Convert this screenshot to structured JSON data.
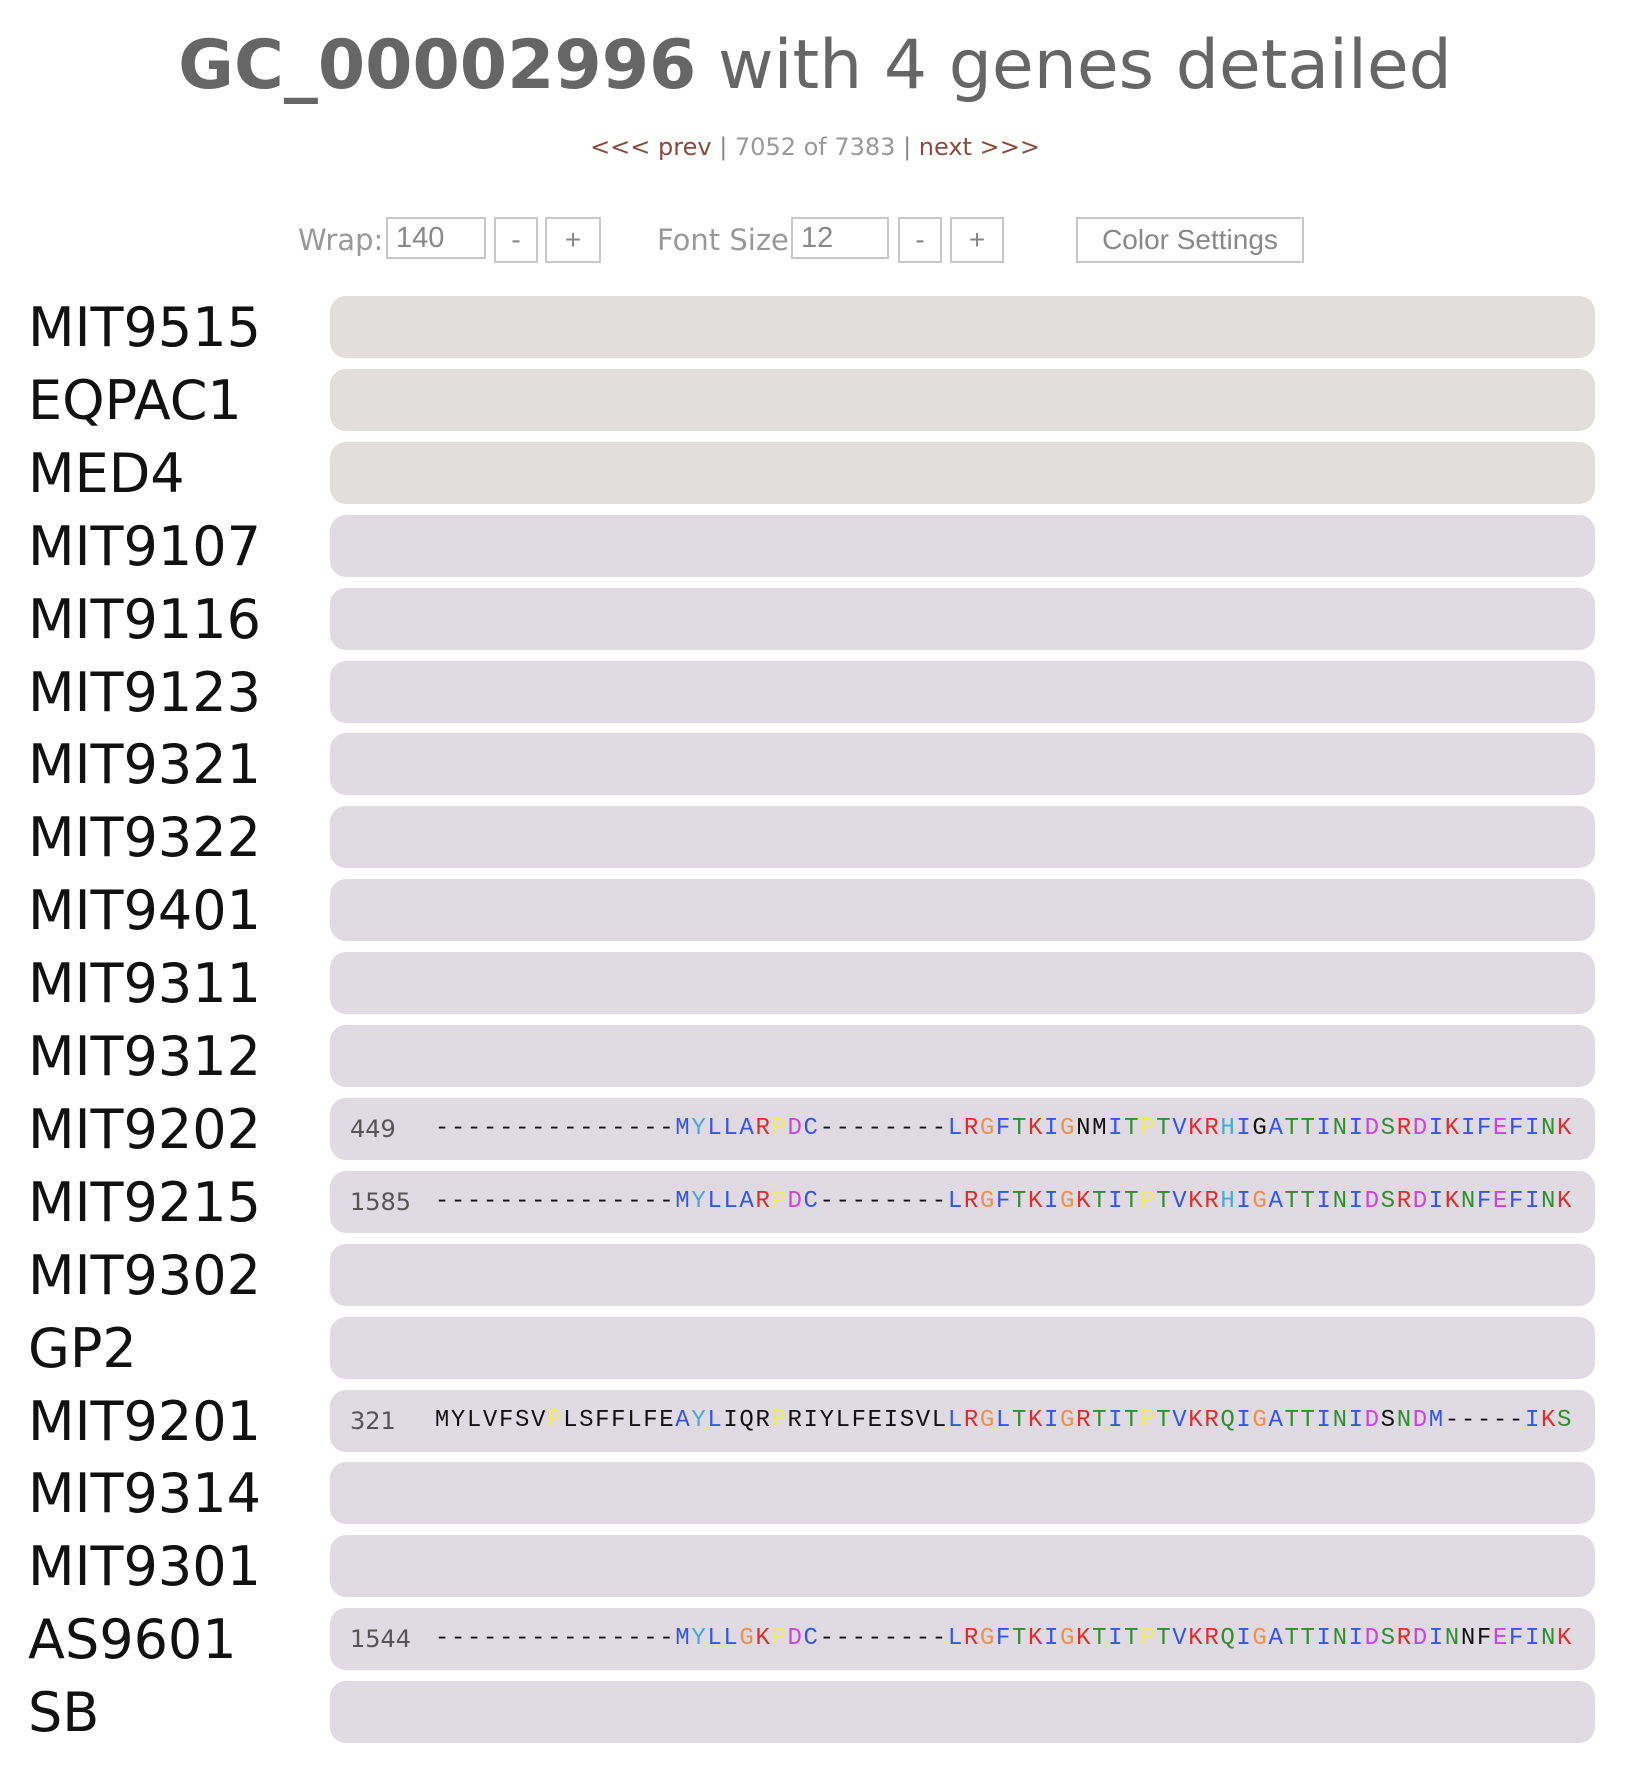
{
  "title": {
    "id": "GC_00002996",
    "rest": " with 4 genes detailed"
  },
  "pager": {
    "prev": "<<< prev",
    "sep1": " | ",
    "position": "7052 of 7383",
    "sep2": " | ",
    "next": "next >>>"
  },
  "controls": {
    "wrap_label": "Wrap:",
    "wrap_value": "140",
    "font_label": "Font Size:",
    "font_value": "12",
    "minus": "-",
    "plus": "+",
    "color_settings": "Color Settings"
  },
  "colors": {
    "row_gray": "#e2dedb",
    "row_purple": "#e0dbe3",
    "link": "#8a4b3d",
    "residues": {
      "M": "#3355ee",
      "I": "#3355ee",
      "L": "#3355ee",
      "V": "#3355ee",
      "A": "#3355ee",
      "F": "#3355ee",
      "C": "#3355ee",
      "K": "#e02c2c",
      "R": "#e02c2c",
      "D": "#cc44dd",
      "E": "#cc44dd",
      "T": "#2f8f2f",
      "N": "#2f8f2f",
      "S": "#2f8f2f",
      "Q": "#2f8f2f",
      "G": "#f0904a",
      "P": "#f2ea58",
      "H": "#44aadd",
      "Y": "#44aadd",
      "W": "#44aadd",
      "-": "#111111"
    }
  },
  "genomes": [
    {
      "name": "MIT9515",
      "tone": "gray"
    },
    {
      "name": "EQPAC1",
      "tone": "gray"
    },
    {
      "name": "MED4",
      "tone": "gray"
    },
    {
      "name": "MIT9107",
      "tone": "purple"
    },
    {
      "name": "MIT9116",
      "tone": "purple"
    },
    {
      "name": "MIT9123",
      "tone": "purple"
    },
    {
      "name": "MIT9321",
      "tone": "purple"
    },
    {
      "name": "MIT9322",
      "tone": "purple"
    },
    {
      "name": "MIT9401",
      "tone": "purple"
    },
    {
      "name": "MIT9311",
      "tone": "purple"
    },
    {
      "name": "MIT9312",
      "tone": "purple"
    },
    {
      "name": "MIT9202",
      "tone": "purple",
      "start": "449",
      "seq": "---------------MYLLARPDC--------LRGFTKIGNMITPTVKRHIGATTINIDSRDIKIFEFINK",
      "plain": [
        40,
        41,
        51
      ]
    },
    {
      "name": "MIT9215",
      "tone": "purple",
      "start": "1585",
      "seq": "---------------MYLLARPDC--------LRGFTKIGKTITPTVKRHIGATTINIDSRDIKNFEFINK",
      "plain": []
    },
    {
      "name": "MIT9302",
      "tone": "purple"
    },
    {
      "name": "GP2",
      "tone": "purple"
    },
    {
      "name": "MIT9201",
      "tone": "purple",
      "start": "321",
      "seq": "MYLVFSVPLSFFLFEAYLIQRPRIYLFEISVLLRGLTKIGRTITPTVKRQIGATTINIDSNDM-----IKS",
      "plain": [
        0,
        1,
        2,
        3,
        4,
        5,
        6,
        8,
        9,
        10,
        11,
        12,
        13,
        14,
        18,
        19,
        20,
        22,
        23,
        24,
        25,
        26,
        27,
        28,
        29,
        30,
        31,
        59
      ]
    },
    {
      "name": "MIT9314",
      "tone": "purple"
    },
    {
      "name": "MIT9301",
      "tone": "purple"
    },
    {
      "name": "AS9601",
      "tone": "purple",
      "start": "1544",
      "seq": "---------------MYLLGKPDC--------LRGFTKIGKTITPTVKRQIGATTINIDSRDINNFEFINK",
      "plain": [
        64,
        65
      ]
    },
    {
      "name": "SB",
      "tone": "purple"
    }
  ]
}
